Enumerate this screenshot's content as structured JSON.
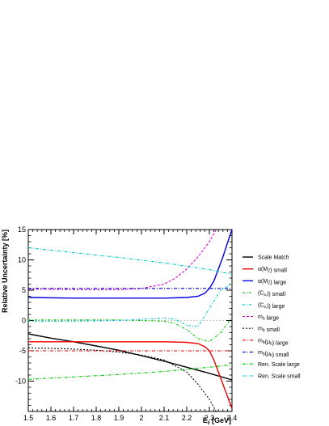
{
  "chart_data": {
    "type": "line",
    "title": "",
    "xlabel": "E",
    "xlabel_sub": "0",
    "xlabel_unit": " [GeV]",
    "ylabel": "Relative Uncertainty [%]",
    "xlim": [
      1.5,
      2.4
    ],
    "ylim": [
      -15,
      15
    ],
    "x_ticks": [
      "1.5",
      "1.6",
      "1.7",
      "1.8",
      "1.9",
      "2",
      "2.1",
      "2.2",
      "2.3",
      "2.4"
    ],
    "y_ticks": [
      "-10",
      "-5",
      "0",
      "5",
      "10",
      "15"
    ],
    "y_tick_values": [
      -10,
      -5,
      0,
      5,
      10,
      15
    ],
    "legend_position": "right",
    "series": [
      {
        "name": "Scale Match",
        "legend": [
          {
            "t": "Scale Match"
          }
        ],
        "color": "#000000",
        "dash": "",
        "width": 1.4,
        "x": [
          1.5,
          1.6,
          1.7,
          1.8,
          1.9,
          2.0,
          2.1,
          2.2,
          2.3,
          2.4
        ],
        "y": [
          -2.2,
          -2.9,
          -3.5,
          -4.2,
          -4.9,
          -5.8,
          -6.7,
          -7.7,
          -8.7,
          -9.8
        ]
      },
      {
        "name": "α(MZ) small",
        "legend": [
          {
            "t": "α(M"
          },
          {
            "t": "Z",
            "sub": true
          },
          {
            "t": ") small"
          }
        ],
        "color": "#ee0000",
        "dash": "",
        "width": 1.4,
        "x": [
          1.5,
          1.7,
          1.9,
          2.1,
          2.2,
          2.25,
          2.28,
          2.3,
          2.32,
          2.34,
          2.36,
          2.38,
          2.4
        ],
        "y": [
          -3.5,
          -3.5,
          -3.5,
          -3.5,
          -3.6,
          -3.8,
          -4.3,
          -5.0,
          -6.5,
          -8.5,
          -10.5,
          -12.5,
          -14.5
        ]
      },
      {
        "name": "α(MZ) large",
        "legend": [
          {
            "t": "α(M"
          },
          {
            "t": "Z",
            "sub": true
          },
          {
            "t": ") large"
          }
        ],
        "color": "#0000dd",
        "dash": "",
        "width": 1.4,
        "x": [
          1.5,
          1.7,
          1.9,
          2.1,
          2.2,
          2.25,
          2.28,
          2.3,
          2.32,
          2.34,
          2.36,
          2.38,
          2.4
        ],
        "y": [
          3.8,
          3.7,
          3.7,
          3.7,
          3.8,
          4.0,
          4.5,
          5.3,
          6.5,
          8.5,
          10.5,
          12.8,
          15.0
        ]
      },
      {
        "name": "(Cs,l) small",
        "legend": [
          {
            "t": "(C"
          },
          {
            "t": "s",
            "sub": true
          },
          {
            "t": ",l) small"
          }
        ],
        "color": "#00cc00",
        "dash": "3,2,1,2",
        "width": 1.1,
        "x": [
          1.5,
          1.7,
          1.9,
          2.1,
          2.15,
          2.2,
          2.25,
          2.3,
          2.35,
          2.4
        ],
        "y": [
          0.1,
          0.1,
          0.1,
          -0.1,
          -0.5,
          -1.5,
          -3.0,
          -3.5,
          -2.0,
          0.5
        ]
      },
      {
        "name": "(Cs,l) large",
        "legend": [
          {
            "t": "(C"
          },
          {
            "t": "s",
            "sub": true
          },
          {
            "t": ",l) large"
          }
        ],
        "color": "#00cccc",
        "dash": "3,2,1,2",
        "width": 1.1,
        "x": [
          1.5,
          1.7,
          1.9,
          2.1,
          2.15,
          2.2,
          2.25,
          2.3,
          2.35,
          2.4
        ],
        "y": [
          -0.1,
          -0.1,
          0.0,
          0.4,
          0.2,
          -0.8,
          -1.0,
          2.0,
          5.0,
          6.0
        ]
      },
      {
        "name": "mb large",
        "legend": [
          {
            "t": "m"
          },
          {
            "t": "b",
            "sub": true
          },
          {
            "t": " large"
          }
        ],
        "color": "#dd00dd",
        "dash": "3,2",
        "width": 1.1,
        "x": [
          1.5,
          1.7,
          1.9,
          2.0,
          2.1,
          2.15,
          2.2,
          2.25,
          2.3,
          2.33
        ],
        "y": [
          5.2,
          5.1,
          5.1,
          5.3,
          6.0,
          7.0,
          8.5,
          10.5,
          13.0,
          15.0
        ]
      },
      {
        "name": "mb small",
        "legend": [
          {
            "t": "m"
          },
          {
            "t": "b",
            "sub": true
          },
          {
            "t": " small"
          }
        ],
        "color": "#000000",
        "dash": "2,2",
        "width": 1.1,
        "x": [
          1.5,
          1.6,
          1.7,
          1.8,
          1.9,
          2.0,
          2.1,
          2.15,
          2.2,
          2.25,
          2.3,
          2.33
        ],
        "y": [
          -4.5,
          -4.6,
          -4.7,
          -4.9,
          -5.2,
          -5.7,
          -6.5,
          -7.5,
          -8.5,
          -10.5,
          -13.0,
          -15.0
        ]
      },
      {
        "name": "mb(μb) large",
        "legend": [
          {
            "t": "m"
          },
          {
            "t": "b",
            "sub": true
          },
          {
            "t": "(μ"
          },
          {
            "t": "b",
            "sub": true
          },
          {
            "t": ") large"
          }
        ],
        "color": "#ee0000",
        "dash": "4,2,1,2",
        "width": 1.1,
        "x": [
          1.5,
          2.4
        ],
        "y": [
          -5.0,
          -5.0
        ]
      },
      {
        "name": "mb(μb) small",
        "legend": [
          {
            "t": "m"
          },
          {
            "t": "b",
            "sub": true
          },
          {
            "t": "(μ"
          },
          {
            "t": "b",
            "sub": true
          },
          {
            "t": ") small"
          }
        ],
        "color": "#0000dd",
        "dash": "4,2,1,2",
        "width": 1.1,
        "x": [
          1.5,
          2.4
        ],
        "y": [
          5.3,
          5.3
        ]
      },
      {
        "name": "Ren. Scale large",
        "legend": [
          {
            "t": "Ren. Scale large"
          }
        ],
        "color": "#00cc00",
        "dash": "4,2,1,2",
        "width": 1.1,
        "x": [
          1.5,
          1.7,
          1.9,
          2.1,
          2.3,
          2.4
        ],
        "y": [
          -9.7,
          -9.3,
          -8.9,
          -8.4,
          -7.7,
          -7.3
        ]
      },
      {
        "name": "Ren. Scale small",
        "legend": [
          {
            "t": "Ren. Scale small"
          }
        ],
        "color": "#00cccc",
        "dash": "4,2,1,2",
        "width": 1.1,
        "x": [
          1.5,
          1.7,
          1.9,
          2.1,
          2.3,
          2.4
        ],
        "y": [
          12.0,
          11.2,
          10.4,
          9.5,
          8.4,
          7.6
        ]
      }
    ]
  }
}
